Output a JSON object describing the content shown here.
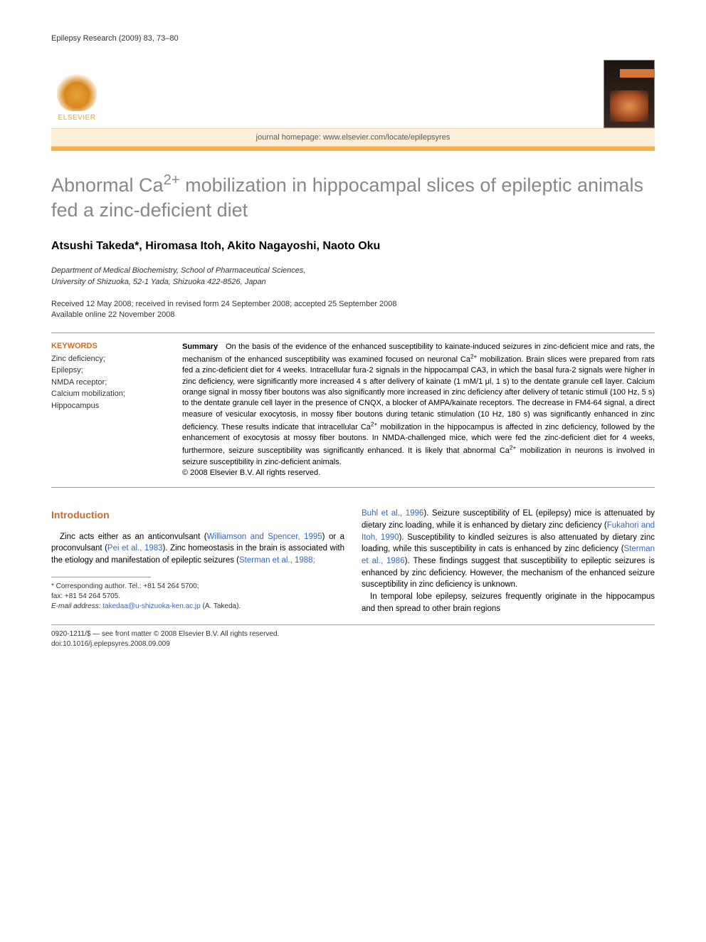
{
  "header": {
    "journal_citation": "Epilepsy Research (2009) 83, 73–80",
    "elsevier_label": "ELSEVIER",
    "homepage_label": "journal homepage: www.elsevier.com/locate/epilepsyres"
  },
  "article": {
    "title_html": "Abnormal Ca<sup>2+</sup> mobilization in hippocampal slices of epileptic animals fed a zinc-deficient diet",
    "authors": "Atsushi Takeda*, Hiromasa Itoh, Akito Nagayoshi, Naoto Oku",
    "affiliation_line1": "Department of Medical Biochemistry, School of Pharmaceutical Sciences,",
    "affiliation_line2": "University of Shizuoka, 52-1 Yada, Shizuoka 422-8526, Japan",
    "dates_line1": "Received 12 May 2008; received in revised form 24 September 2008; accepted 25 September 2008",
    "dates_line2": "Available online 22 November 2008"
  },
  "keywords": {
    "heading": "KEYWORDS",
    "items": "Zinc deficiency;\nEpilepsy;\nNMDA receptor;\nCalcium mobilization;\nHippocampus"
  },
  "summary": {
    "label": "Summary",
    "body_html": "On the basis of the evidence of the enhanced susceptibility to kainate-induced seizures in zinc-deficient mice and rats, the mechanism of the enhanced susceptibility was examined focused on neuronal Ca<sup>2+</sup> mobilization. Brain slices were prepared from rats fed a zinc-deficient diet for 4 weeks. Intracellular fura-2 signals in the hippocampal CA3, in which the basal fura-2 signals were higher in zinc deficiency, were significantly more increased 4 s after delivery of kainate (1 mM/1 μl, 1 s) to the dentate granule cell layer. Calcium orange signal in mossy fiber boutons was also significantly more increased in zinc deficiency after delivery of tetanic stimuli (100 Hz, 5 s) to the dentate granule cell layer in the presence of CNQX, a blocker of AMPA/kainate receptors. The decrease in FM4-64 signal, a direct measure of vesicular exocytosis, in mossy fiber boutons during tetanic stimulation (10 Hz, 180 s) was significantly enhanced in zinc deficiency. These results indicate that intracellular Ca<sup>2+</sup> mobilization in the hippocampus is affected in zinc deficiency, followed by the enhancement of exocytosis at mossy fiber boutons. In NMDA-challenged mice, which were fed the zinc-deficient diet for 4 weeks, furthermore, seizure susceptibility was significantly enhanced. It is likely that abnormal Ca<sup>2+</sup> mobilization in neurons is involved in seizure susceptibility in zinc-deficient animals.",
    "copyright": "© 2008 Elsevier B.V. All rights reserved."
  },
  "introduction": {
    "heading": "Introduction",
    "col1_html": "Zinc acts either as an anticonvulsant (<span class='ref-link'>Williamson and Spencer, 1995</span>) or a proconvulsant (<span class='ref-link'>Pei et al., 1983</span>). Zinc homeostasis in the brain is associated with the etiology and manifestation of epileptic seizures (<span class='ref-link'>Sterman et al., 1988;</span>",
    "col2_html": "<span class='ref-link'>Buhl et al., 1996</span>). Seizure susceptibility of EL (epilepsy) mice is attenuated by dietary zinc loading, while it is enhanced by dietary zinc deficiency (<span class='ref-link'>Fukahori and Itoh, 1990</span>). Susceptibility to kindled seizures is also attenuated by dietary zinc loading, while this susceptibility in cats is enhanced by zinc deficiency (<span class='ref-link'>Sterman et al., 1986</span>). These findings suggest that susceptibility to epileptic seizures is enhanced by zinc deficiency. However, the mechanism of the enhanced seizure susceptibility in zinc deficiency is unknown.",
    "col2_p2": "In temporal lobe epilepsy, seizures frequently originate in the hippocampus and then spread to other brain regions"
  },
  "footnotes": {
    "corr_line1": "* Corresponding author. Tel.: +81 54 264 5700;",
    "corr_line2": "fax: +81 54 264 5705.",
    "email_label": "E-mail address:",
    "email": "takedaa@u-shizuoka-ken.ac.jp",
    "email_suffix": "(A. Takeda)."
  },
  "bottom": {
    "line1": "0920-1211/$ — see front matter © 2008 Elsevier B.V. All rights reserved.",
    "line2": "doi:10.1016/j.eplepsyres.2008.09.009"
  },
  "colors": {
    "accent_orange": "#ce6a2a",
    "title_gray": "#888888",
    "rule_orange": "#f5b04a",
    "homepage_bg": "#fef0d8",
    "link_blue": "#3366cc"
  }
}
